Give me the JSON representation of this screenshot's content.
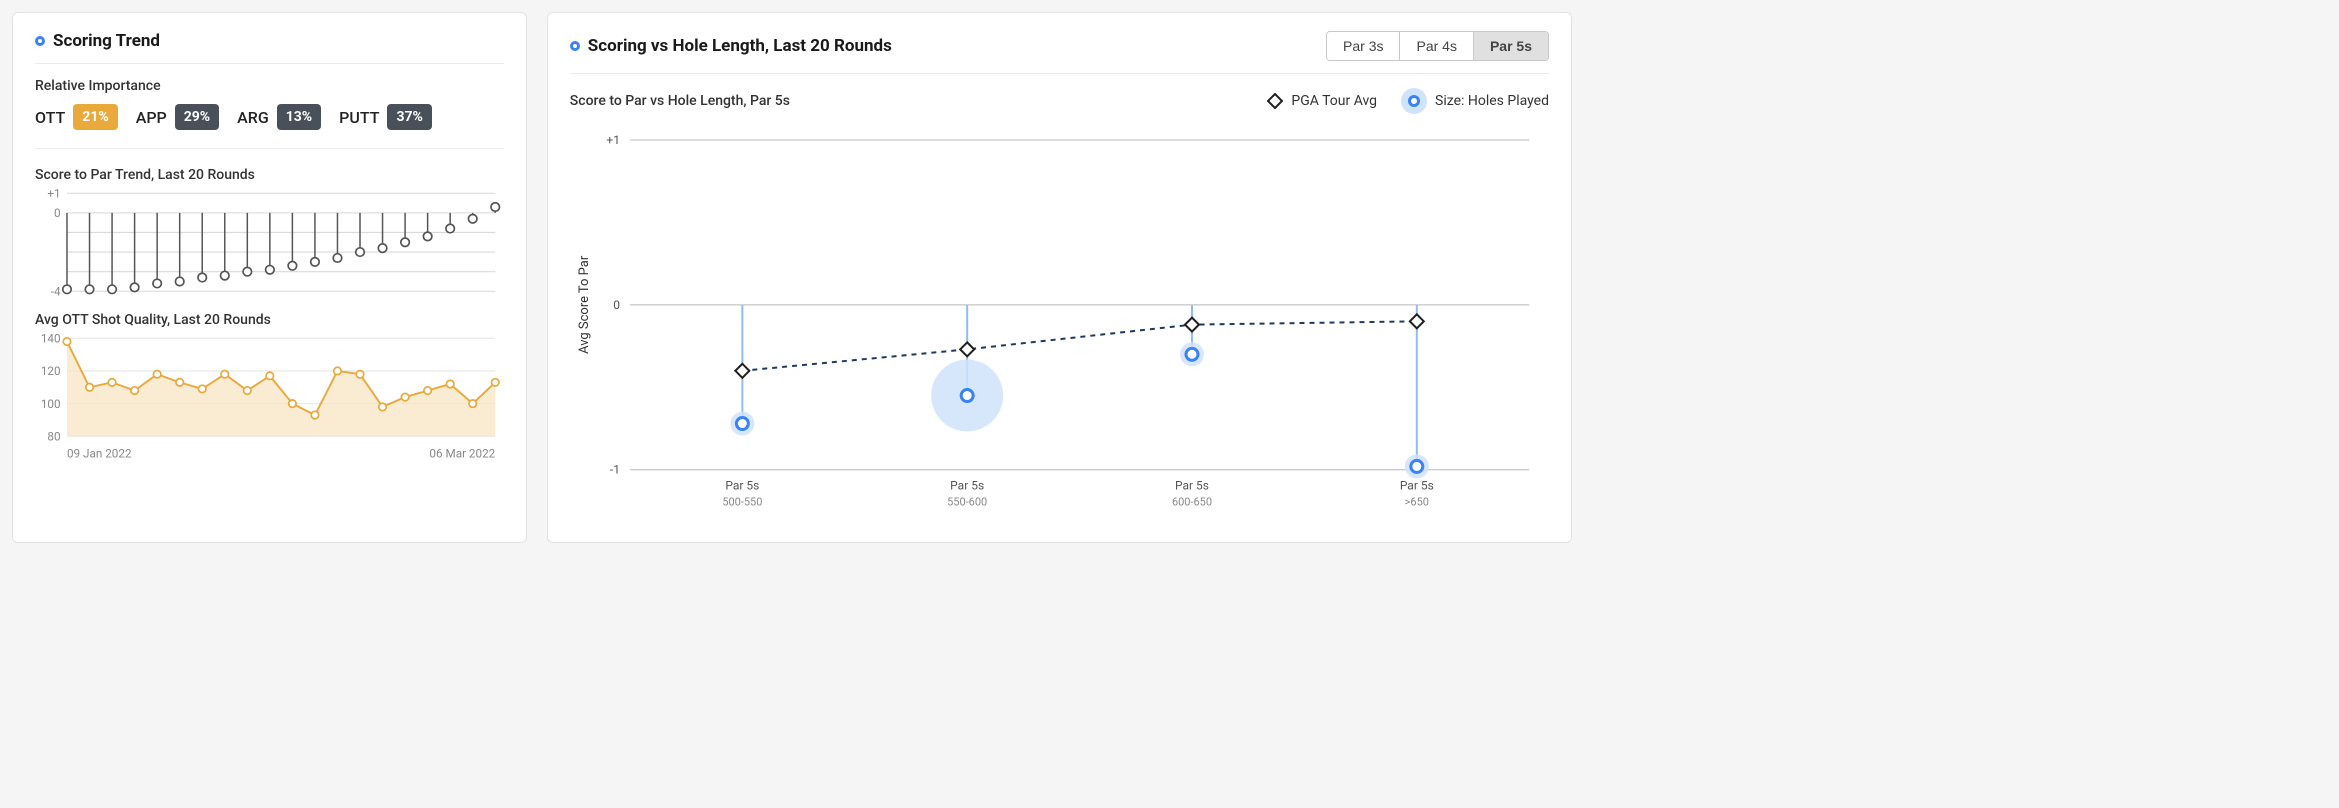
{
  "left_card": {
    "title": "Scoring Trend",
    "importance_label": "Relative Importance",
    "importance": [
      {
        "label": "OTT",
        "value": "21%",
        "bg": "#e9a93b"
      },
      {
        "label": "APP",
        "value": "29%",
        "bg": "#4a5059"
      },
      {
        "label": "ARG",
        "value": "13%",
        "bg": "#4a5059"
      },
      {
        "label": "PUTT",
        "value": "37%",
        "bg": "#4a5059"
      }
    ],
    "score_trend": {
      "title": "Score to Par Trend, Last 20 Rounds",
      "y_min": -4,
      "y_max": 1,
      "y_ticks": [
        1,
        0,
        -4
      ],
      "grid_color": "#d9d9d9",
      "point_stroke": "#555555",
      "point_fill": "#ffffff",
      "stem_color": "#555555",
      "values": [
        -3.9,
        -3.9,
        -3.9,
        -3.8,
        -3.6,
        -3.5,
        -3.3,
        -3.2,
        -3.0,
        -2.9,
        -2.7,
        -2.5,
        -2.3,
        -2.0,
        -1.8,
        -1.5,
        -1.2,
        -0.8,
        -0.3,
        0.3
      ],
      "x_left_label": "09 Jan 2022",
      "x_right_label": "06 Mar 2022"
    },
    "ott_quality": {
      "title": "Avg OTT Shot Quality, Last 20 Rounds",
      "y_min": 80,
      "y_max": 140,
      "y_ticks": [
        140,
        120,
        100,
        80
      ],
      "grid_color": "#e6e6e6",
      "line_color": "#e9a93b",
      "fill_color": "#f6e4c0",
      "values": [
        138,
        110,
        113,
        108,
        118,
        113,
        109,
        118,
        108,
        117,
        100,
        93,
        120,
        118,
        98,
        104,
        108,
        112,
        100,
        113
      ],
      "x_left_label": "09 Jan 2022",
      "x_right_label": "06 Mar 2022"
    }
  },
  "right_card": {
    "title": "Scoring vs Hole Length, Last 20 Rounds",
    "tabs": [
      "Par 3s",
      "Par 4s",
      "Par 5s"
    ],
    "active_tab_index": 2,
    "subtitle": "Score to Par vs Hole Length, Par 5s",
    "legend_pga": "PGA Tour Avg",
    "legend_size": "Size: Holes Played",
    "y_axis_label": "Avg Score To Par",
    "y_min": -1,
    "y_max": 1,
    "y_ticks": [
      1,
      0,
      -1
    ],
    "grid_color": "#b8b8b8",
    "stem_color": "#8fbdf2",
    "bubble_fill": "#cfe3fb",
    "bubble_ring": "#3b82f6",
    "pga_line_color": "#1f3a5f",
    "pga_marker_stroke": "#1f1f1f",
    "pga_marker_fill": "#ffffff",
    "categories": [
      {
        "label_top": "Par 5s",
        "label_bot": "500-550",
        "player_val": -0.72,
        "pga_val": -0.4,
        "bubble_r": 12
      },
      {
        "label_top": "Par 5s",
        "label_bot": "550-600",
        "player_val": -0.55,
        "pga_val": -0.27,
        "bubble_r": 36
      },
      {
        "label_top": "Par 5s",
        "label_bot": "600-650",
        "player_val": -0.3,
        "pga_val": -0.12,
        "bubble_r": 12
      },
      {
        "label_top": "Par 5s",
        "label_bot": ">650",
        "player_val": -0.98,
        "pga_val": -0.1,
        "bubble_r": 12
      }
    ]
  },
  "colors": {
    "title_bullet": "#3b82f6",
    "card_border": "#e3e3e3",
    "card_bg": "#ffffff"
  }
}
